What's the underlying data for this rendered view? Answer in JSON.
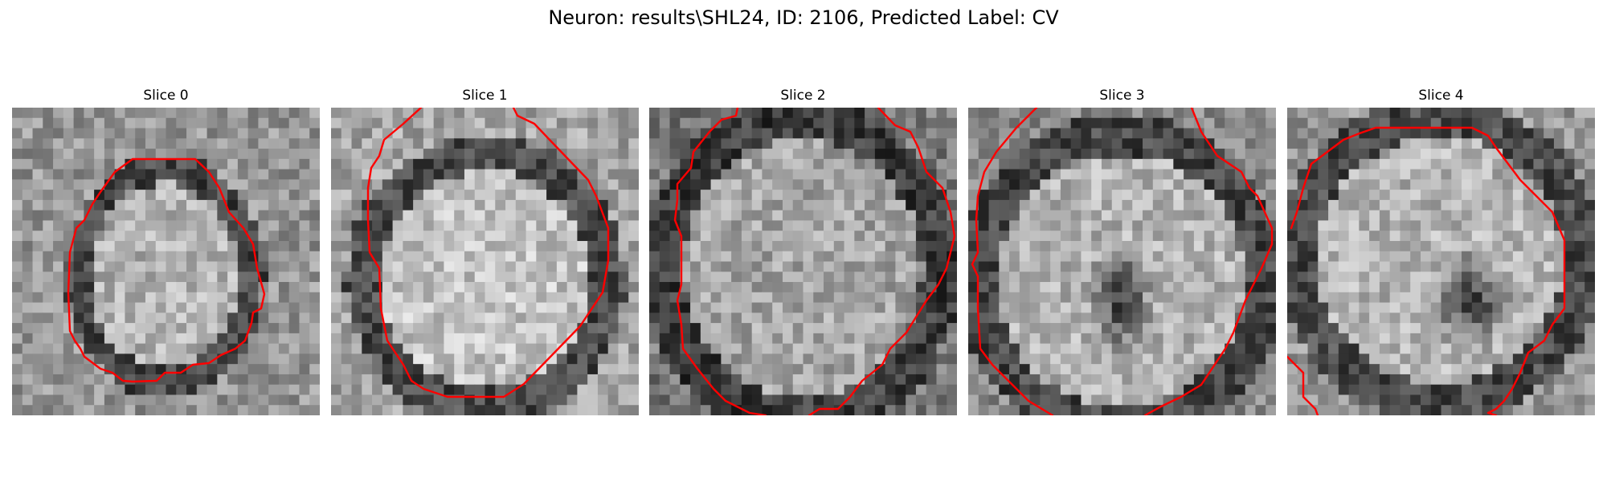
{
  "figure": {
    "title": "Neuron: results\\SHL24, ID: 2106, Predicted Label: CV"
  },
  "panels": [
    {
      "title": "Slice 0"
    },
    {
      "title": "Slice 1"
    },
    {
      "title": "Slice 2"
    },
    {
      "title": "Slice 3"
    },
    {
      "title": "Slice 4"
    }
  ],
  "colors": {
    "contour": "#ff0000",
    "colormap": "grayscale"
  }
}
